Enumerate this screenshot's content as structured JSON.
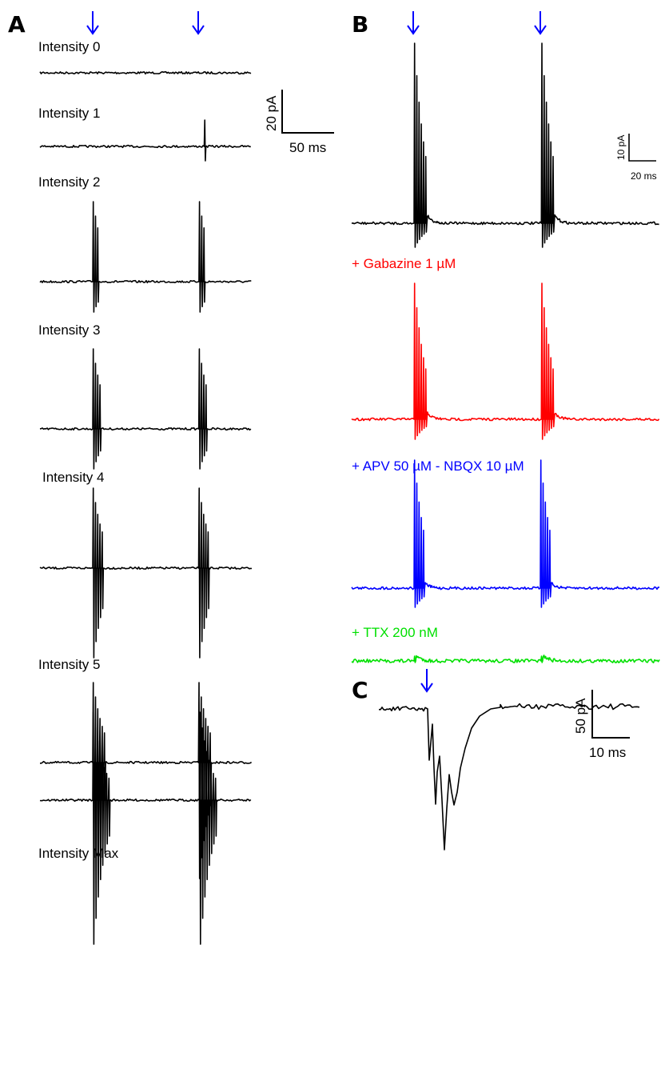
{
  "panel_A": {
    "letter": "A",
    "traces": [
      {
        "label": "Intensity 0",
        "burst": 0,
        "up": 0,
        "down": 0
      },
      {
        "label": "Intensity 1",
        "burst": 0,
        "up": 0,
        "down": 0,
        "single_spike2": true
      },
      {
        "label": "Intensity 2",
        "burst": 3,
        "up": 100,
        "down": 38
      },
      {
        "label": "Intensity 3",
        "burst": 4,
        "up": 100,
        "down": 50
      },
      {
        "label": "Intensity 4",
        "burst": 5,
        "up": 100,
        "down": 112
      },
      {
        "label": "Intensity 5",
        "burst": 6,
        "up": 100,
        "down": 145
      },
      {
        "label": "Intensity Max",
        "burst": 8,
        "up": 110,
        "down": 180
      }
    ],
    "scale_bar": {
      "y_label": "20 pA",
      "x_label": "50 ms"
    }
  },
  "panel_B": {
    "letter": "B",
    "traces": [
      {
        "label": "",
        "color": "#000000"
      },
      {
        "label": "+ Gabazine 1 µM",
        "color": "#ff0000"
      },
      {
        "label": "+ APV 50 µM - NBQX 10 µM",
        "color": "#0000ff"
      },
      {
        "label": "+ TTX 200 nM",
        "color": "#00e000"
      }
    ],
    "scale_bar": {
      "y_label": "10 pA",
      "x_label": "20 ms"
    }
  },
  "panel_C": {
    "letter": "C",
    "scale_bar": {
      "y_label": "50 pA",
      "x_label": "10 ms"
    }
  },
  "colors": {
    "stimulus_arrow": "#0000ff",
    "trace_default": "#000000"
  },
  "icons": {
    "stimulus": "down-arrow-icon"
  }
}
